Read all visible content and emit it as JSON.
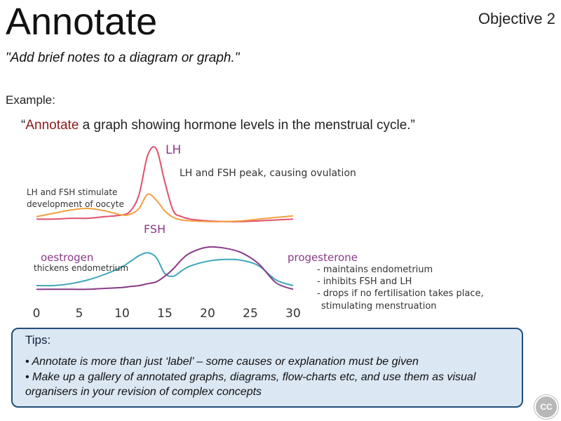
{
  "slide": {
    "title": "Annotate",
    "objective": "Objective 2",
    "definition": "\"Add brief notes to a diagram or graph.\"",
    "example_label": "Example:",
    "question_open": "“",
    "question_highlight": "Annotate",
    "question_rest": " a graph showing hormone levels in the menstrual cycle.”"
  },
  "colors": {
    "lh": "#e0506e",
    "fsh": "#f2a040",
    "oestrogen": "#3ea6b8",
    "progesterone": "#8a3a8a",
    "highlight": "#8b1a1a",
    "tips_border": "#1f4e79",
    "tips_bg": "#dbe7f3"
  },
  "chart_data": {
    "type": "line",
    "x": [
      0,
      2,
      4,
      6,
      8,
      10,
      11,
      12,
      13,
      14,
      15,
      16,
      17,
      18,
      20,
      22,
      24,
      26,
      28,
      30
    ],
    "xticks": [
      "0",
      "5",
      "10",
      "15",
      "20",
      "25",
      "30"
    ],
    "xlim": [
      0,
      30
    ],
    "grid": false,
    "series": [
      {
        "name": "LH",
        "values": [
          15,
          15,
          16,
          16,
          18,
          20,
          25,
          45,
          92,
          100,
          60,
          25,
          18,
          15,
          13,
          12,
          12,
          13,
          14,
          15
        ]
      },
      {
        "name": "FSH",
        "values": [
          18,
          22,
          26,
          28,
          25,
          20,
          21,
          28,
          45,
          38,
          25,
          17,
          14,
          13,
          12,
          12,
          13,
          15,
          17,
          19
        ]
      },
      {
        "name": "oestrogen",
        "values": [
          12,
          12,
          14,
          18,
          24,
          32,
          38,
          44,
          47,
          42,
          25,
          22,
          28,
          33,
          38,
          40,
          39,
          33,
          18,
          12
        ]
      },
      {
        "name": "progesterone",
        "values": [
          8,
          8,
          8,
          8,
          9,
          10,
          11,
          12,
          14,
          16,
          22,
          30,
          40,
          47,
          53,
          52,
          47,
          35,
          15,
          8
        ]
      }
    ],
    "labels": {
      "lh": "LH",
      "fsh": "FSH",
      "oestrogen": "oestrogen",
      "progesterone": "progesterone"
    },
    "annotations": {
      "peak": "LH and FSH peak, causing ovulation",
      "stimulate_1": "LH and FSH stimulate",
      "stimulate_2": "development of oocyte",
      "oestrogen_note": "thickens endometrium",
      "prog_1": "- maintains endometrium",
      "prog_2": "- inhibits FSH and LH",
      "prog_3": "- drops if no fertilisation takes place,",
      "prog_4": "stimulating menstruation"
    }
  },
  "tips": {
    "title": "Tips:",
    "items": [
      "• Annotate is more than just ‘label’ – some causes or explanation must be given",
      "• Make up a gallery of annotated graphs, diagrams, flow-charts etc, and use them as visual organisers in your revision of complex concepts"
    ]
  },
  "badge": {
    "label": "CC"
  }
}
